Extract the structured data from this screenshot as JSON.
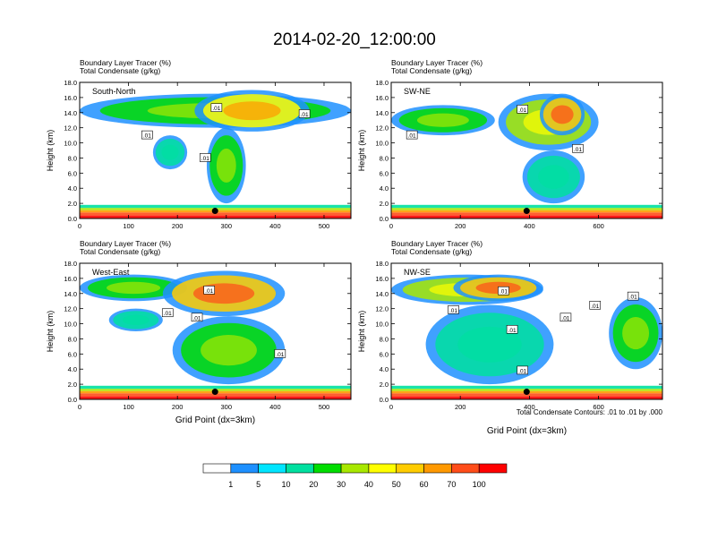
{
  "title": "2014-02-20_12:00:00",
  "footer_note": "Total Condensate Contours: .01 to .01 by .000",
  "chart_data": {
    "type": "heatmap",
    "panels": [
      {
        "name": "South-North",
        "label_line1": "Boundary Layer Tracer   (%)",
        "label_line2": "Total Condensate   (g/kg)",
        "ylabel": "Height (km)",
        "xlabel": "",
        "xlim": [
          0,
          555
        ],
        "ylim": [
          0,
          18
        ],
        "xticks": [
          0,
          100,
          200,
          300,
          400,
          500
        ],
        "yticks": [
          0.0,
          2.0,
          4.0,
          6.0,
          8.0,
          10.0,
          12.0,
          14.0,
          16.0,
          18.0
        ],
        "marker": {
          "x": 277,
          "y": 1.0
        },
        "contour_labels": [
          {
            "text": ".01",
            "x": 138,
            "y": 11.0
          },
          {
            "text": ".01",
            "x": 280,
            "y": 14.6
          },
          {
            "text": ".01",
            "x": 460,
            "y": 13.8
          },
          {
            "text": ".01",
            "x": 257,
            "y": 8.0
          }
        ],
        "cloud_regions": [
          {
            "x0": 0,
            "x1": 555,
            "y0": 12.0,
            "y1": 16.5,
            "level": 20
          },
          {
            "x0": 235,
            "x1": 470,
            "y0": 11.5,
            "y1": 17.0,
            "level": 40
          },
          {
            "x0": 260,
            "x1": 340,
            "y0": 2.0,
            "y1": 12.0,
            "level": 20
          },
          {
            "x0": 150,
            "x1": 220,
            "y0": 6.5,
            "y1": 11.0,
            "level": 10
          }
        ]
      },
      {
        "name": "SW-NE",
        "label_line1": "Boundary Layer Tracer   (%)",
        "label_line2": "Total Condensate   (g/kg)",
        "ylabel": "Height (km)",
        "xlabel": "",
        "xlim": [
          0,
          785
        ],
        "ylim": [
          0,
          18
        ],
        "xticks": [
          0,
          200,
          400,
          600
        ],
        "yticks": [
          0.0,
          2.0,
          4.0,
          6.0,
          8.0,
          10.0,
          12.0,
          14.0,
          16.0,
          18.0
        ],
        "marker": {
          "x": 392,
          "y": 1.0
        },
        "contour_labels": [
          {
            "text": ".01",
            "x": 60,
            "y": 11.0
          },
          {
            "text": ".01",
            "x": 380,
            "y": 14.4
          },
          {
            "text": ".01",
            "x": 540,
            "y": 9.2
          }
        ],
        "cloud_regions": [
          {
            "x0": 0,
            "x1": 300,
            "y0": 11.0,
            "y1": 15.0,
            "level": 20
          },
          {
            "x0": 310,
            "x1": 600,
            "y0": 9.0,
            "y1": 16.5,
            "level": 30
          },
          {
            "x0": 430,
            "x1": 560,
            "y0": 11.0,
            "y1": 16.5,
            "level": 50
          },
          {
            "x0": 380,
            "x1": 560,
            "y0": 2.0,
            "y1": 9.0,
            "level": 10
          }
        ]
      },
      {
        "name": "West-East",
        "label_line1": "Boundary Layer Tracer   (%)",
        "label_line2": "Total Condensate   (g/kg)",
        "ylabel": "Height (km)",
        "xlabel": "Grid Point (dx=3km)",
        "xlim": [
          0,
          555
        ],
        "ylim": [
          0,
          18
        ],
        "xticks": [
          0,
          100,
          200,
          300,
          400,
          500
        ],
        "yticks": [
          0.0,
          2.0,
          4.0,
          6.0,
          8.0,
          10.0,
          12.0,
          14.0,
          16.0,
          18.0
        ],
        "marker": {
          "x": 277,
          "y": 1.0
        },
        "contour_labels": [
          {
            "text": ".01",
            "x": 265,
            "y": 14.4
          },
          {
            "text": ".01",
            "x": 180,
            "y": 11.4
          },
          {
            "text": ".01",
            "x": 240,
            "y": 10.8
          },
          {
            "text": ".01",
            "x": 410,
            "y": 6.0
          }
        ],
        "cloud_regions": [
          {
            "x0": 0,
            "x1": 220,
            "y0": 13.0,
            "y1": 16.5,
            "level": 20
          },
          {
            "x0": 170,
            "x1": 420,
            "y0": 11.0,
            "y1": 17.0,
            "level": 50
          },
          {
            "x0": 190,
            "x1": 420,
            "y0": 2.0,
            "y1": 11.0,
            "level": 20
          },
          {
            "x0": 60,
            "x1": 170,
            "y0": 9.0,
            "y1": 12.0,
            "level": 10
          }
        ]
      },
      {
        "name": "NW-SE",
        "label_line1": "Boundary Layer Tracer   (%)",
        "label_line2": "Total Condensate   (g/kg)",
        "ylabel": "Height (km)",
        "xlabel": "Grid Point (dx=3km)",
        "xlim": [
          0,
          785
        ],
        "ylim": [
          0,
          18
        ],
        "xticks": [
          0,
          200,
          400,
          600
        ],
        "yticks": [
          0.0,
          2.0,
          4.0,
          6.0,
          8.0,
          10.0,
          12.0,
          14.0,
          16.0,
          18.0
        ],
        "marker": {
          "x": 392,
          "y": 1.0
        },
        "contour_labels": [
          {
            "text": ".01",
            "x": 325,
            "y": 14.3
          },
          {
            "text": ".01",
            "x": 180,
            "y": 11.8
          },
          {
            "text": ".01",
            "x": 350,
            "y": 9.2
          },
          {
            "text": ".01",
            "x": 505,
            "y": 10.8
          },
          {
            "text": ".01",
            "x": 590,
            "y": 12.4
          },
          {
            "text": ".01",
            "x": 700,
            "y": 13.6
          },
          {
            "text": ".01",
            "x": 380,
            "y": 3.8
          }
        ],
        "cloud_regions": [
          {
            "x0": 0,
            "x1": 440,
            "y0": 12.5,
            "y1": 16.5,
            "level": 30
          },
          {
            "x0": 180,
            "x1": 440,
            "y0": 13.0,
            "y1": 16.5,
            "level": 50
          },
          {
            "x0": 100,
            "x1": 470,
            "y0": 2.0,
            "y1": 12.5,
            "level": 10
          },
          {
            "x0": 630,
            "x1": 785,
            "y0": 4.0,
            "y1": 13.5,
            "level": 20
          }
        ]
      }
    ],
    "colorbar": {
      "levels": [
        1,
        5,
        10,
        20,
        30,
        40,
        50,
        60,
        70,
        100
      ],
      "colors": [
        "#ffffff",
        "#1e90ff",
        "#00e5ff",
        "#00e0a0",
        "#00dd00",
        "#a8e800",
        "#ffff00",
        "#ffcc00",
        "#ff9900",
        "#ff4d1a",
        "#ff0000"
      ]
    }
  }
}
